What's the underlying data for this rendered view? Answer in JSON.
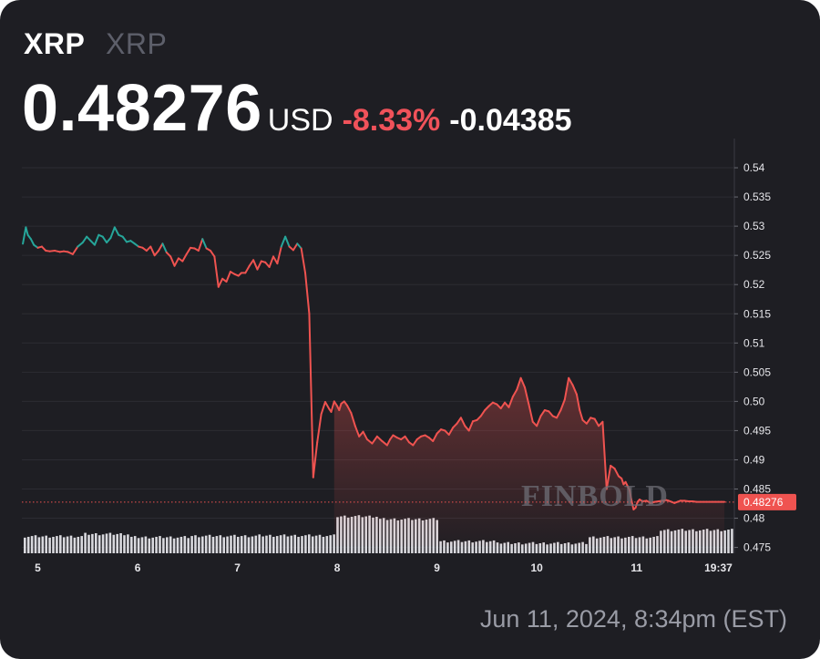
{
  "header": {
    "symbol": "XRP",
    "symbol_secondary": "XRP",
    "price": "0.48276",
    "currency": "USD",
    "change_pct": "-8.33%",
    "change_abs": "-0.04385"
  },
  "watermark": "FINBOLD",
  "timestamp": "Jun 11, 2024, 8:34pm (EST)",
  "colors": {
    "background": "#1e1e23",
    "up": "#26a69a",
    "down": "#ef5350",
    "volume": "#d9d9de",
    "grid": "#2c2c33"
  },
  "chart_data": {
    "type": "line",
    "ylim": [
      0.474,
      0.545
    ],
    "y_ticks": [
      "0.54",
      "0.535",
      "0.53",
      "0.525",
      "0.52",
      "0.515",
      "0.51",
      "0.505",
      "0.50",
      "0.495",
      "0.49",
      "0.485",
      "0.48",
      "0.475"
    ],
    "y_tick_values": [
      0.54,
      0.535,
      0.53,
      0.525,
      0.52,
      0.515,
      0.51,
      0.505,
      0.5,
      0.495,
      0.49,
      0.485,
      0.48,
      0.475
    ],
    "x_range": [
      4.84,
      11.98
    ],
    "x_ticks": [
      {
        "label": "5",
        "value": 5.0
      },
      {
        "label": "6",
        "value": 6.0
      },
      {
        "label": "7",
        "value": 7.0
      },
      {
        "label": "8",
        "value": 8.0
      },
      {
        "label": "9",
        "value": 9.0
      },
      {
        "label": "10",
        "value": 10.0
      },
      {
        "label": "11",
        "value": 11.0
      },
      {
        "label": "19:37",
        "value": 11.82
      }
    ],
    "last_price_label": "0.48276",
    "last_price": 0.48276,
    "series": [
      {
        "x": [
          4.85,
          4.88,
          4.9,
          4.93,
          4.96,
          5.0,
          5.04,
          5.08,
          5.12,
          5.17,
          5.22,
          5.26,
          5.3,
          5.35,
          5.4,
          5.45,
          5.49,
          5.53,
          5.57,
          5.61,
          5.65,
          5.69,
          5.73,
          5.77,
          5.81,
          5.85,
          5.89,
          5.93,
          5.97,
          6.01,
          6.05,
          6.09,
          6.13,
          6.17,
          6.21,
          6.25,
          6.29,
          6.33,
          6.37,
          6.41,
          6.45,
          6.49,
          6.53,
          6.57,
          6.61,
          6.65,
          6.69,
          6.73,
          6.77,
          6.81,
          6.85,
          6.89,
          6.93,
          6.97,
          7.01,
          7.04,
          7.08,
          7.12,
          7.16,
          7.2,
          7.24,
          7.28,
          7.32,
          7.36,
          7.4,
          7.44,
          7.48,
          7.52,
          7.56,
          7.6,
          7.64,
          7.68,
          7.72,
          7.76,
          7.8,
          7.84,
          7.88,
          7.92,
          7.94,
          7.97,
          8.0,
          8.02,
          8.04,
          8.07,
          8.1,
          8.14,
          8.18,
          8.22,
          8.26,
          8.3,
          8.35,
          8.4,
          8.45,
          8.5,
          8.53,
          8.56,
          8.6,
          8.64,
          8.68,
          8.72,
          8.76,
          8.8,
          8.84,
          8.88,
          8.92,
          8.96,
          9.0,
          9.04,
          9.08,
          9.12,
          9.16,
          9.2,
          9.24,
          9.28,
          9.32,
          9.36,
          9.4,
          9.44,
          9.48,
          9.52,
          9.56,
          9.6,
          9.64,
          9.68,
          9.72,
          9.76,
          9.8,
          9.84,
          9.88,
          9.92,
          9.96,
          10.0,
          10.04,
          10.08,
          10.12,
          10.16,
          10.2,
          10.24,
          10.28,
          10.32,
          10.36,
          10.4,
          10.43,
          10.46,
          10.5,
          10.54,
          10.58,
          10.62,
          10.66,
          10.7,
          10.74,
          10.78,
          10.82,
          10.85,
          10.87,
          10.89,
          10.91,
          10.93,
          10.95,
          10.97,
          10.99,
          11.01,
          11.03,
          11.06,
          11.1,
          11.14,
          11.18,
          11.22,
          11.26,
          11.3,
          11.32,
          11.35,
          11.38,
          11.41,
          11.44,
          11.48,
          11.52,
          11.56,
          11.6,
          11.64,
          11.67,
          11.7,
          11.73,
          11.76,
          11.79,
          11.82,
          11.85,
          11.88
        ],
        "y": [
          0.527,
          0.5298,
          0.5285,
          0.5278,
          0.5268,
          0.5263,
          0.5265,
          0.5258,
          0.5257,
          0.5258,
          0.5256,
          0.5257,
          0.5256,
          0.5252,
          0.5265,
          0.5272,
          0.5282,
          0.5275,
          0.5268,
          0.5285,
          0.5282,
          0.5272,
          0.528,
          0.5298,
          0.5285,
          0.5282,
          0.5273,
          0.5275,
          0.527,
          0.5265,
          0.5263,
          0.5258,
          0.5265,
          0.525,
          0.5258,
          0.527,
          0.5255,
          0.5248,
          0.5232,
          0.5245,
          0.524,
          0.5252,
          0.5263,
          0.5262,
          0.5258,
          0.5278,
          0.5262,
          0.5258,
          0.5248,
          0.5196,
          0.521,
          0.5205,
          0.5222,
          0.5218,
          0.5215,
          0.522,
          0.522,
          0.5232,
          0.5242,
          0.5226,
          0.524,
          0.5238,
          0.523,
          0.5248,
          0.5236,
          0.5265,
          0.5282,
          0.5265,
          0.5259,
          0.527,
          0.5262,
          0.522,
          0.515,
          0.487,
          0.493,
          0.4978,
          0.4999,
          0.4987,
          0.4982,
          0.5,
          0.4992,
          0.4985,
          0.4996,
          0.5,
          0.4993,
          0.498,
          0.4958,
          0.494,
          0.4948,
          0.4935,
          0.4928,
          0.494,
          0.4932,
          0.4925,
          0.4935,
          0.4942,
          0.4938,
          0.4935,
          0.494,
          0.493,
          0.4925,
          0.4935,
          0.494,
          0.4942,
          0.4938,
          0.4932,
          0.4945,
          0.4952,
          0.495,
          0.4943,
          0.4955,
          0.4962,
          0.4972,
          0.4958,
          0.495,
          0.4966,
          0.4968,
          0.4975,
          0.4985,
          0.4992,
          0.4998,
          0.4995,
          0.4988,
          0.4998,
          0.499,
          0.5008,
          0.502,
          0.504,
          0.5024,
          0.4995,
          0.4965,
          0.4958,
          0.4975,
          0.4985,
          0.4983,
          0.4975,
          0.4972,
          0.4985,
          0.5003,
          0.504,
          0.5028,
          0.5012,
          0.4985,
          0.4968,
          0.4962,
          0.4972,
          0.497,
          0.4958,
          0.4965,
          0.485,
          0.489,
          0.4885,
          0.4872,
          0.4868,
          0.4858,
          0.4862,
          0.4855,
          0.4848,
          0.483,
          0.4815,
          0.4818,
          0.4828,
          0.4832,
          0.4829,
          0.483,
          0.4826,
          0.4828,
          0.4829,
          0.483,
          0.4831,
          0.483,
          0.4828,
          0.4826,
          0.4828,
          0.483,
          0.483,
          0.4829,
          0.4829,
          0.4828,
          0.4828,
          0.4828,
          0.4828,
          0.4828,
          0.4828,
          0.4828,
          0.4828,
          0.4828,
          0.4828
        ]
      }
    ],
    "volume": {
      "segments": [
        {
          "x_start": 4.84,
          "x_end": 5.45,
          "level": 0.42
        },
        {
          "x_start": 5.45,
          "x_end": 5.9,
          "level": 0.48
        },
        {
          "x_start": 5.9,
          "x_end": 6.5,
          "level": 0.4
        },
        {
          "x_start": 6.5,
          "x_end": 7.2,
          "level": 0.43
        },
        {
          "x_start": 7.2,
          "x_end": 7.97,
          "level": 0.44
        },
        {
          "x_start": 7.97,
          "x_end": 8.4,
          "level": 0.92
        },
        {
          "x_start": 8.4,
          "x_end": 9.0,
          "level": 0.85
        },
        {
          "x_start": 9.0,
          "x_end": 9.6,
          "level": 0.3
        },
        {
          "x_start": 9.6,
          "x_end": 10.5,
          "level": 0.25
        },
        {
          "x_start": 10.5,
          "x_end": 11.2,
          "level": 0.4
        },
        {
          "x_start": 11.2,
          "x_end": 11.88,
          "level": 0.58
        }
      ]
    }
  }
}
